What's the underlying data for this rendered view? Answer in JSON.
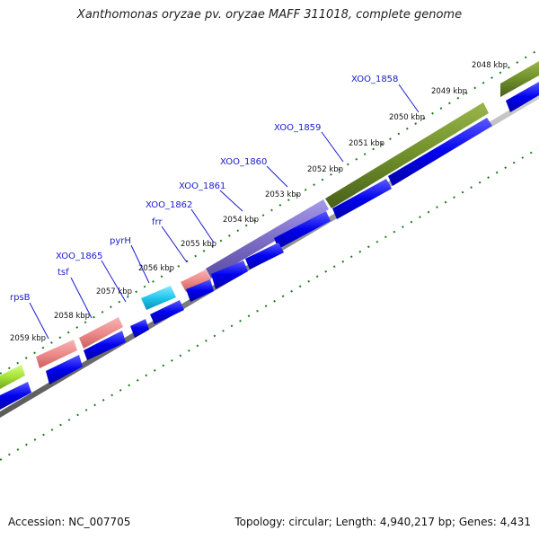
{
  "title": "Xanthomonas oryzae pv. oryzae MAFF 311018, complete genome",
  "footer": {
    "accession": "Accession: NC_007705",
    "summary": "Topology: circular; Length: 4,940,217 bp; Genes: 4,431"
  },
  "scale_labels": [
    "2048 kbp",
    "2049 kbp",
    "2050 kbp",
    "2051 kbp",
    "2052 kbp",
    "2053 kbp",
    "2054 kbp",
    "2055 kbp",
    "2056 kbp",
    "2057 kbp",
    "2058 kbp",
    "2059 kbp"
  ],
  "gene_labels": [
    "XOO_1858",
    "XOO_1859",
    "XOO_1860",
    "XOO_1861",
    "XOO_1862",
    "frr",
    "pyrH",
    "XOO_1865",
    "tsf",
    "rpsB"
  ],
  "colors": {
    "cds_blue": "#0000ee",
    "olive": "#6f8f2a",
    "purple": "#7d6ec8",
    "pink": "#ee8a8a",
    "cyan": "#22c6ee",
    "lime": "#a6e23a",
    "tick_green": "#1c7a1c",
    "backbone_gray": "#8a8a8a",
    "label_blue": "#1a1ad0"
  }
}
